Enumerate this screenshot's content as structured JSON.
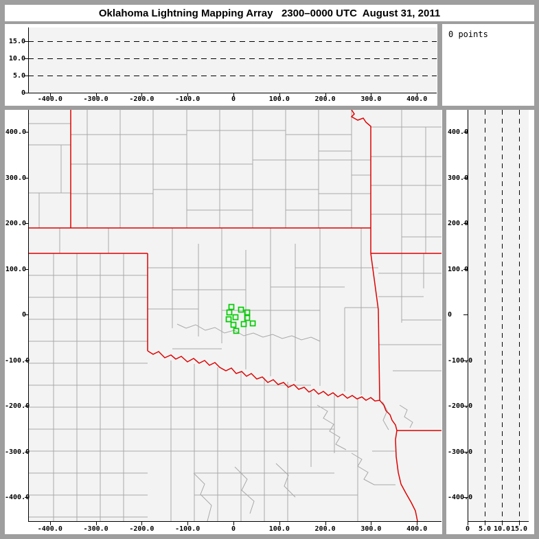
{
  "title": "Oklahoma Lightning Mapping Array   2300–0000 UTC  August 31, 2011",
  "points_box": {
    "label": "0 points"
  },
  "colors": {
    "frame_gray": "#9e9e9e",
    "plot_background": "#f3f3f3",
    "county_line_gray": "#a8a8a8",
    "state_border_red": "#e00000",
    "station_green": "#00cc00",
    "axis_black": "#000000"
  },
  "top_panel": {
    "description": "altitude (km) vs east-west distance (km) cross-section, empty",
    "x_ticks": [
      "-400.0",
      "-300.0",
      "-200.0",
      "-100.0",
      "0",
      "100.0",
      "200.0",
      "300.0",
      "400.0"
    ],
    "y_ticks": [
      "15.0",
      "10.0",
      "5.0",
      "0"
    ]
  },
  "main_panel": {
    "description": "plan-view map, east-west km vs north-south km",
    "x_ticks": [
      "-400.0",
      "-300.0",
      "-200.0",
      "-100.0",
      "0",
      "100.0",
      "200.0",
      "300.0",
      "400.0"
    ],
    "y_ticks": [
      "400.0",
      "300.0",
      "200.0",
      "100.0",
      "0",
      "-100.0",
      "-200.0",
      "-300.0",
      "-400.0"
    ]
  },
  "right_panel": {
    "description": "north-south km vs altitude (km) cross-section, empty",
    "x_ticks": [
      "0",
      "5.0",
      "10.0",
      "15.0"
    ],
    "y_ticks": [
      "400.0",
      "300.0",
      "200.0",
      "100.0",
      "0",
      "-100.0",
      "-200.0",
      "-300.0",
      "-400.0"
    ]
  },
  "chart_data": {
    "type": "scatter",
    "title": "Oklahoma Lightning Mapping Array   2300–0000 UTC  August 31, 2011",
    "points_count": 0,
    "x_range_km": [
      -450,
      452
    ],
    "y_range_km": [
      -449,
      445
    ],
    "alt_range_km": [
      0,
      18.5
    ],
    "alt_gridlines_km": [
      5,
      10,
      15
    ],
    "distance_ticks_km": [
      -400,
      -300,
      -200,
      -100,
      0,
      100,
      200,
      300,
      400
    ],
    "legend": "green squares = LMA station locations; red = state borders; gray = county borders",
    "stations_east_north_km": [
      [
        -4.5,
        16.5
      ],
      [
        16.5,
        10.5
      ],
      [
        30,
        4.5
      ],
      [
        -9,
        4.5
      ],
      [
        4.5,
        -6
      ],
      [
        -10.5,
        -10.5
      ],
      [
        30,
        -7.5
      ],
      [
        22.5,
        -21
      ],
      [
        0,
        -22.5
      ],
      [
        42,
        -19.5
      ],
      [
        6,
        -36
      ]
    ]
  }
}
